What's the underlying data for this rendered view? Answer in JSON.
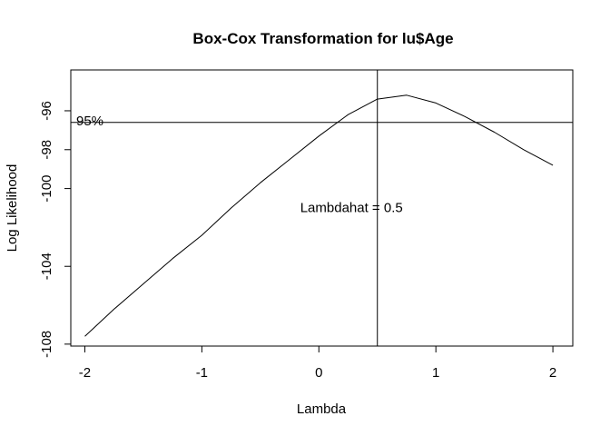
{
  "chart_data": {
    "type": "line",
    "title": "Box-Cox Transformation for lu$Age",
    "xlabel": "Lambda",
    "ylabel": "Log Likelihood",
    "xlim": [
      -2.12,
      2.17
    ],
    "ylim": [
      -108.1,
      -93.9
    ],
    "x_ticks": [
      -2,
      -1,
      0,
      1,
      2
    ],
    "x_tick_labels": [
      "-2",
      "-1",
      "0",
      "1",
      "2"
    ],
    "y_ticks": [
      -108,
      -104,
      -100,
      -98,
      -96
    ],
    "y_tick_labels": [
      "-108",
      "-104",
      "-100",
      "-98",
      "-96"
    ],
    "grid": false,
    "series": [
      {
        "x": [
          -2.0,
          -1.75,
          -1.5,
          -1.25,
          -1.0,
          -0.75,
          -0.5,
          -0.25,
          0.0,
          0.25,
          0.5,
          0.75,
          1.0,
          1.25,
          1.5,
          1.75,
          2.0
        ],
        "y": [
          -107.6,
          -106.2,
          -104.9,
          -103.6,
          -102.4,
          -101.0,
          -99.7,
          -98.5,
          -97.3,
          -96.2,
          -95.4,
          -95.2,
          -95.6,
          -96.3,
          -97.1,
          -98.0,
          -98.8
        ],
        "color": "#000000"
      }
    ],
    "reference_lines": {
      "hline_y": -96.6,
      "hline_label": "95%",
      "vline_x": 0.5,
      "vline_label": "Lambdahat = 0.5"
    }
  }
}
